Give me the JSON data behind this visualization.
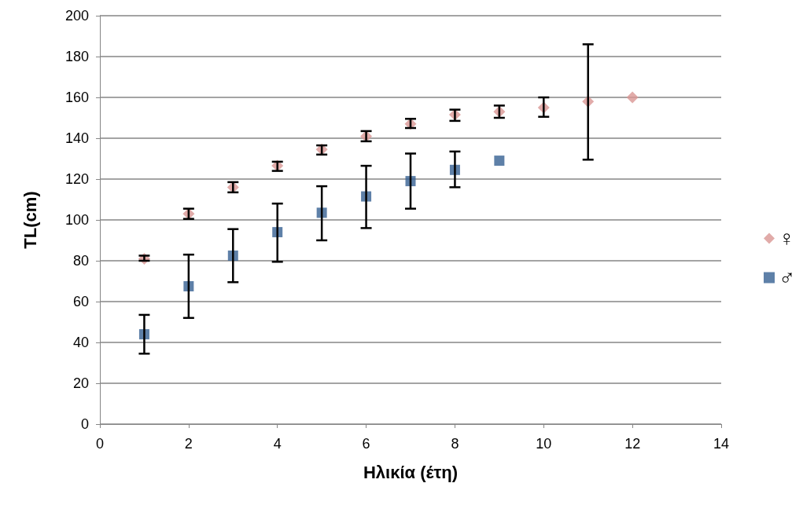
{
  "chart_data": {
    "type": "scatter",
    "xlabel": "Ηλικία (έτη)",
    "ylabel": "TL(cm)",
    "xlim": [
      0,
      14
    ],
    "xticks": [
      0,
      2,
      4,
      6,
      8,
      10,
      12,
      14
    ],
    "ylim": [
      0,
      200
    ],
    "yticks": [
      0,
      20,
      40,
      60,
      80,
      100,
      120,
      140,
      160,
      180,
      200
    ],
    "grid": "y",
    "legend": "right",
    "series": [
      {
        "name": "♀",
        "color": "#d99694",
        "marker": "diamond",
        "x": [
          1,
          2,
          3,
          4,
          5,
          6,
          7,
          8,
          9,
          10,
          11,
          12
        ],
        "values": [
          81,
          103,
          116,
          126.5,
          134.5,
          141,
          147,
          151.5,
          153,
          155,
          158,
          160
        ],
        "errors": [
          [
            80,
            82.5
          ],
          [
            100.5,
            105.5
          ],
          [
            113.5,
            118.5
          ],
          [
            124,
            128.5
          ],
          [
            132,
            136.5
          ],
          [
            138.5,
            143.5
          ],
          [
            145,
            149.5
          ],
          [
            148.5,
            154
          ],
          [
            150,
            156
          ],
          [
            150.5,
            160
          ],
          [
            129.5,
            186
          ],
          null
        ]
      },
      {
        "name": "♂",
        "color": "#366092",
        "marker": "square",
        "x": [
          1,
          2,
          3,
          4,
          5,
          6,
          7,
          8,
          9
        ],
        "values": [
          44,
          67.5,
          82.5,
          94,
          103.5,
          111.5,
          119,
          124.5,
          129
        ],
        "errors": [
          [
            34.5,
            53.5
          ],
          [
            52,
            83
          ],
          [
            69.5,
            95.5
          ],
          [
            79.5,
            108
          ],
          [
            90,
            116.5
          ],
          [
            96,
            126.5
          ],
          [
            105.5,
            132.5
          ],
          [
            116,
            133.5
          ],
          null
        ]
      }
    ]
  }
}
